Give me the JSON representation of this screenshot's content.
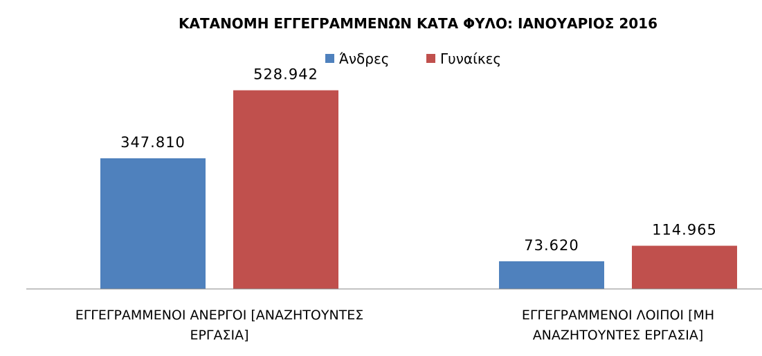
{
  "chart_data": {
    "type": "bar",
    "title": "ΚΑΤΑΝΟΜΗ ΕΓΓΕΓΡΑΜΜΕΝΩΝ ΚΑΤΑ ΦΥΛΟ: ΙΑΝΟΥΑΡΙΟΣ 2016",
    "categories": [
      [
        "ΕΓΓΕΓΡΑΜΜΕΝΟΙ ΑΝΕΡΓΟΙ [ΑΝΑΖΗΤΟΥΝΤΕΣ",
        "ΕΡΓΑΣΙΑ]"
      ],
      [
        "ΕΓΓΕΓΡΑΜΜΕΝΟΙ ΛΟΙΠΟΙ [ΜΗ",
        "ΑΝΑΖΗΤΟΥΝΤΕΣ ΕΡΓΑΣΙΑ]"
      ]
    ],
    "series": [
      {
        "name": "Άνδρες",
        "color": "#4F81BD",
        "values": [
          347810,
          73620
        ],
        "labels": [
          "347.810",
          "73.620"
        ]
      },
      {
        "name": "Γυναίκες",
        "color": "#C0504D",
        "values": [
          528942,
          114965
        ],
        "labels": [
          "528.942",
          "114.965"
        ]
      }
    ],
    "ylim": [
      0,
      600000
    ],
    "grid": false,
    "legend": "top-center",
    "xlabel": "",
    "ylabel": ""
  }
}
